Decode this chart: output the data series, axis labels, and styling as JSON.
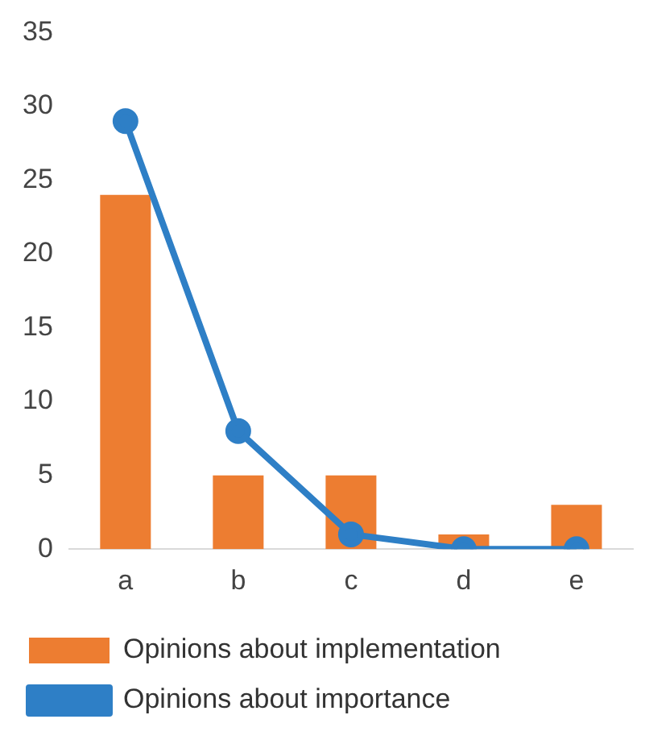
{
  "chart_data": {
    "type": "bar",
    "categories": [
      "a",
      "b",
      "c",
      "d",
      "e"
    ],
    "series": [
      {
        "name": "Opinions about implementation",
        "color": "#ed7d31",
        "values": [
          24,
          5,
          5,
          1,
          3
        ]
      },
      {
        "name": "Opinions about importance",
        "type": "line",
        "color": "#2e7fc6",
        "values": [
          29,
          8,
          1,
          0,
          0
        ]
      }
    ],
    "ylim": [
      0,
      35
    ],
    "yticks": [
      0,
      5,
      10,
      15,
      20,
      25,
      30,
      35
    ],
    "grid": false,
    "legend": "bottom",
    "marker": "circle",
    "line_style": "solid"
  }
}
